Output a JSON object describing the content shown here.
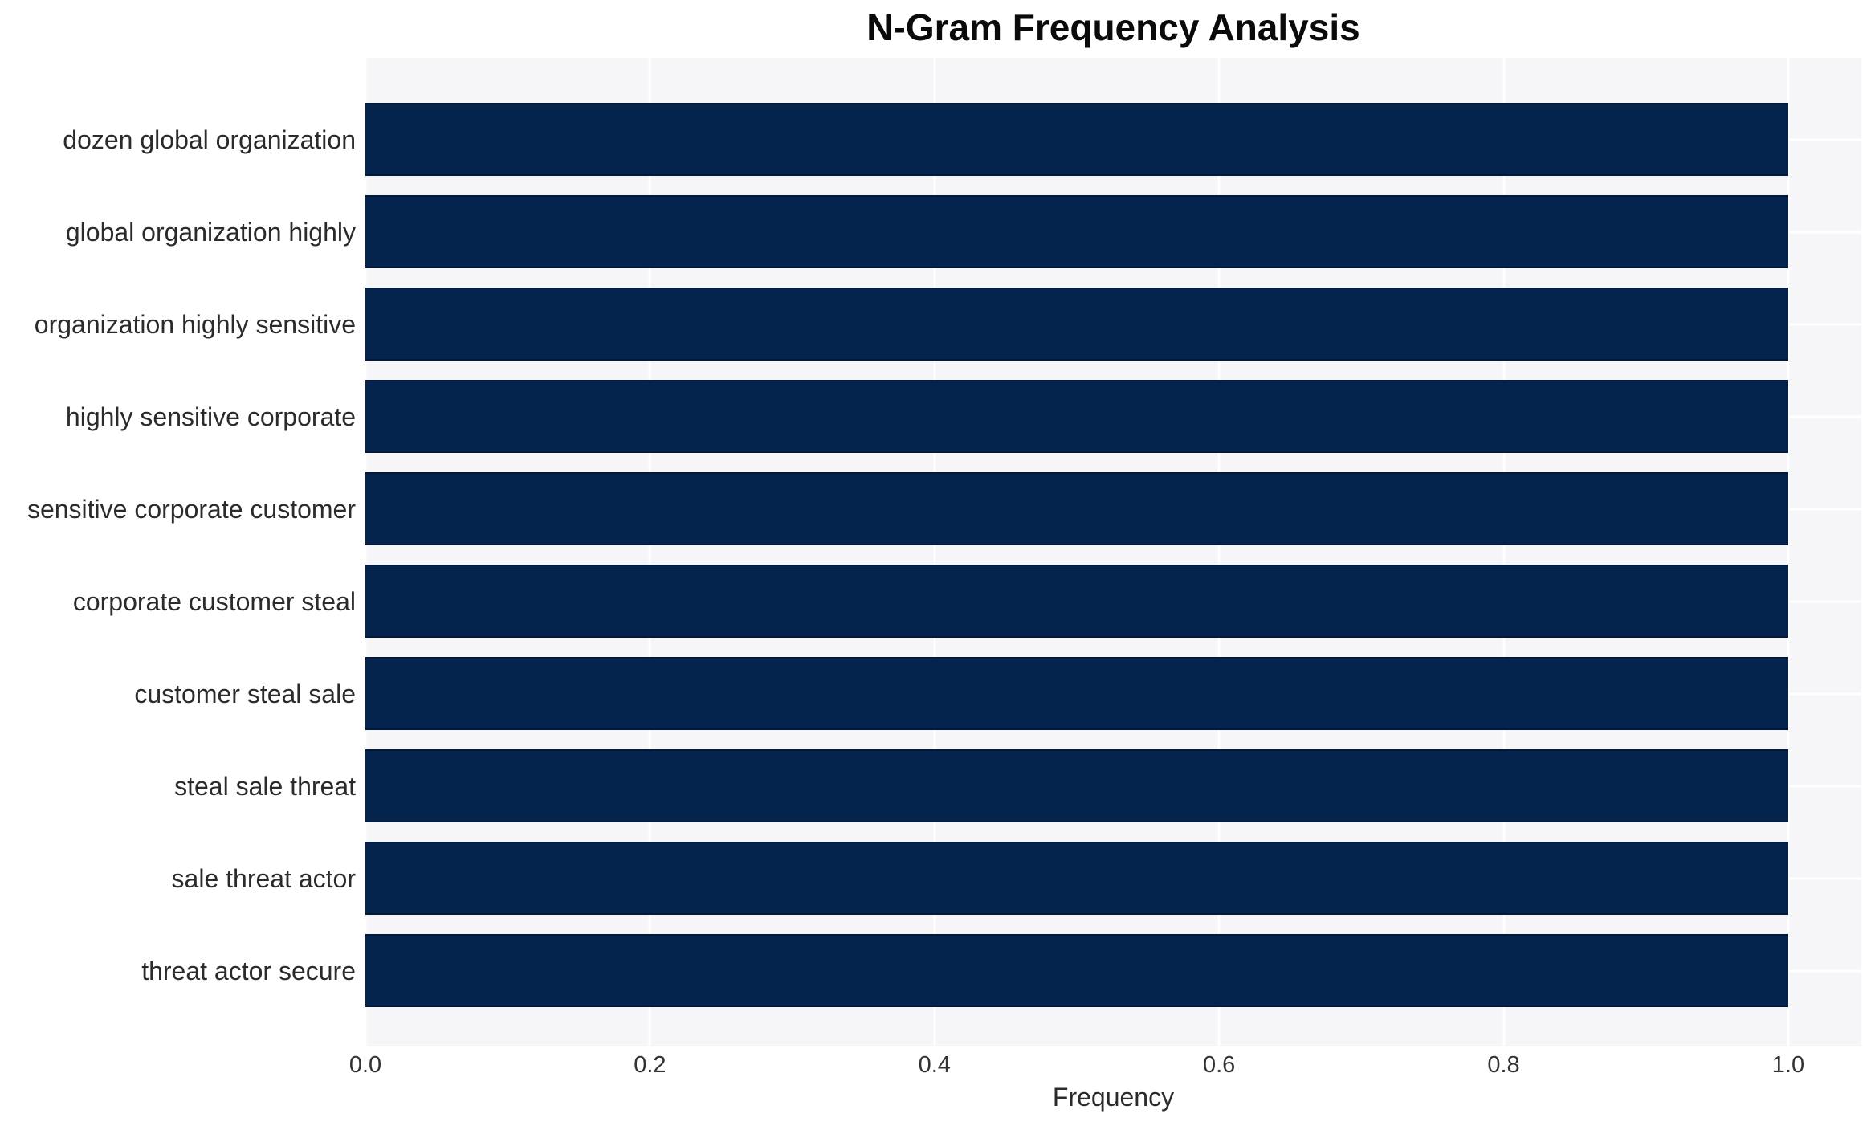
{
  "chart_data": {
    "type": "bar",
    "orientation": "horizontal",
    "title": "N-Gram Frequency Analysis",
    "xlabel": "Frequency",
    "ylabel": "",
    "categories": [
      "dozen global organization",
      "global organization highly",
      "organization highly sensitive",
      "highly sensitive corporate",
      "sensitive corporate customer",
      "corporate customer steal",
      "customer steal sale",
      "steal sale threat",
      "sale threat actor",
      "threat actor secure"
    ],
    "values": [
      1.0,
      1.0,
      1.0,
      1.0,
      1.0,
      1.0,
      1.0,
      1.0,
      1.0,
      1.0
    ],
    "xticks": [
      0.0,
      0.2,
      0.4,
      0.6,
      0.8,
      1.0
    ],
    "xtick_labels": [
      "0.0",
      "0.2",
      "0.4",
      "0.6",
      "0.8",
      "1.0"
    ],
    "xlim": [
      0,
      1.0514
    ],
    "grid": true,
    "legend": false,
    "colors": {
      "bar": "#04234d",
      "plot_background": "#f6f6f8",
      "gridline": "#ffffff",
      "tick_text": "#333333",
      "label_text": "#2b2b2b",
      "title_text": "#0a0a0a"
    }
  }
}
